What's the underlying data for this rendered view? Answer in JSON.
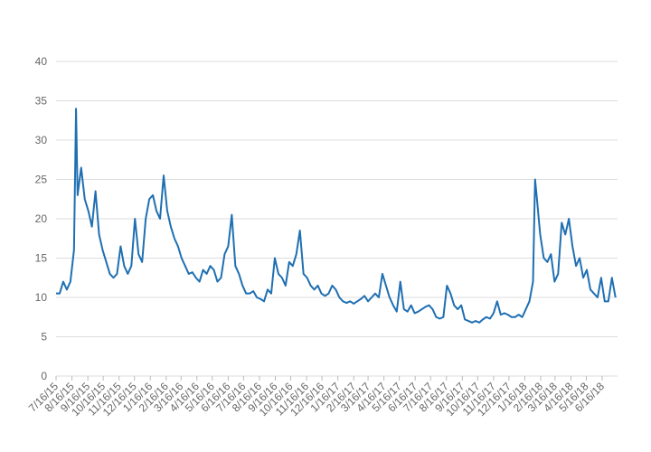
{
  "chart_data": {
    "type": "line",
    "color": "#1f6fb2",
    "x": [
      "7/16/15",
      "7/23/15",
      "7/30/15",
      "8/6/15",
      "8/13/15",
      "8/20/15",
      "8/24/15",
      "8/27/15",
      "9/3/15",
      "9/10/15",
      "9/17/15",
      "9/24/15",
      "10/1/15",
      "10/8/15",
      "10/15/15",
      "10/22/15",
      "10/29/15",
      "11/5/15",
      "11/12/15",
      "11/19/15",
      "11/26/15",
      "12/3/15",
      "12/10/15",
      "12/17/15",
      "12/24/15",
      "12/31/15",
      "1/7/16",
      "1/14/16",
      "1/21/16",
      "1/28/16",
      "2/4/16",
      "2/11/16",
      "2/18/16",
      "2/25/16",
      "3/3/16",
      "3/10/16",
      "3/17/16",
      "3/24/16",
      "3/31/16",
      "4/7/16",
      "4/14/16",
      "4/21/16",
      "4/28/16",
      "5/5/16",
      "5/12/16",
      "5/19/16",
      "5/26/16",
      "6/2/16",
      "6/9/16",
      "6/16/16",
      "6/23/16",
      "6/30/16",
      "7/7/16",
      "7/14/16",
      "7/21/16",
      "7/28/16",
      "8/4/16",
      "8/11/16",
      "8/18/16",
      "8/25/16",
      "9/1/16",
      "9/8/16",
      "9/15/16",
      "9/22/16",
      "9/29/16",
      "10/6/16",
      "10/13/16",
      "10/20/16",
      "10/27/16",
      "11/3/16",
      "11/10/16",
      "11/17/16",
      "11/24/16",
      "12/1/16",
      "12/8/16",
      "12/15/16",
      "12/22/16",
      "12/29/16",
      "1/5/17",
      "1/12/17",
      "1/19/17",
      "1/26/17",
      "2/2/17",
      "2/9/17",
      "2/16/17",
      "2/23/17",
      "3/2/17",
      "3/9/17",
      "3/16/17",
      "3/23/17",
      "3/30/17",
      "4/6/17",
      "4/13/17",
      "4/20/17",
      "4/27/17",
      "5/4/17",
      "5/11/17",
      "5/18/17",
      "5/25/17",
      "6/1/17",
      "6/8/17",
      "6/15/17",
      "6/22/17",
      "6/29/17",
      "7/6/17",
      "7/13/17",
      "7/20/17",
      "7/27/17",
      "8/3/17",
      "8/10/17",
      "8/17/17",
      "8/24/17",
      "8/31/17",
      "9/7/17",
      "9/14/17",
      "9/21/17",
      "9/28/17",
      "10/5/17",
      "10/12/17",
      "10/19/17",
      "10/26/17",
      "11/2/17",
      "11/9/17",
      "11/16/17",
      "11/23/17",
      "11/30/17",
      "12/7/17",
      "12/14/17",
      "12/21/17",
      "12/28/17",
      "1/4/18",
      "1/11/18",
      "1/18/18",
      "1/25/18",
      "2/1/18",
      "2/5/18",
      "2/8/18",
      "2/15/18",
      "2/22/18",
      "3/1/18",
      "3/8/18",
      "3/15/18",
      "3/22/18",
      "3/29/18",
      "4/5/18",
      "4/12/18",
      "4/19/18",
      "4/26/18",
      "5/3/18",
      "5/10/18",
      "5/17/18",
      "5/24/18",
      "5/31/18",
      "6/7/18",
      "6/14/18",
      "6/21/18",
      "6/28/18",
      "7/5/18",
      "7/12/18"
    ],
    "values": [
      10.5,
      10.5,
      12,
      11,
      12,
      16,
      34,
      23,
      26.5,
      22.5,
      21,
      19,
      23.5,
      18,
      16,
      14.5,
      13,
      12.5,
      13,
      16.5,
      14,
      13,
      14,
      20,
      15.5,
      14.5,
      20,
      22.5,
      23,
      21,
      20,
      25.5,
      21,
      19,
      17.5,
      16.5,
      15,
      14,
      13,
      13.2,
      12.5,
      12,
      13.5,
      13,
      14,
      13.5,
      12,
      12.5,
      15.5,
      16.5,
      20.5,
      14,
      13,
      11.5,
      10.5,
      10.5,
      10.8,
      10,
      9.8,
      9.5,
      11,
      10.5,
      15,
      13,
      12.5,
      11.5,
      14.5,
      14,
      15.5,
      18.5,
      13,
      12.5,
      11.5,
      11,
      11.5,
      10.5,
      10.2,
      10.5,
      11.5,
      11,
      10,
      9.5,
      9.3,
      9.5,
      9.2,
      9.5,
      9.8,
      10.2,
      9.5,
      10,
      10.5,
      10,
      13,
      11.5,
      10,
      9,
      8.2,
      12,
      8.5,
      8.2,
      9,
      8,
      8.2,
      8.5,
      8.8,
      9,
      8.5,
      7.5,
      7.3,
      7.5,
      11.5,
      10.5,
      9,
      8.5,
      9,
      7.2,
      7,
      6.8,
      7,
      6.8,
      7.2,
      7.5,
      7.3,
      8,
      9.5,
      7.8,
      8,
      7.8,
      7.5,
      7.5,
      7.8,
      7.5,
      8.5,
      9.5,
      12,
      25,
      23,
      18,
      15,
      14.5,
      15.5,
      12,
      13,
      19.5,
      18,
      20,
      16.5,
      14,
      15,
      12.5,
      13.5,
      11,
      10.5,
      10,
      12.5,
      9.5,
      9.5,
      12.5,
      10
    ],
    "xlim": [
      "7/16/15",
      "7/16/18"
    ],
    "xticks": [
      "7/16/15",
      "8/16/15",
      "9/16/15",
      "10/16/15",
      "11/16/15",
      "12/16/15",
      "1/16/16",
      "2/16/16",
      "3/16/16",
      "4/16/16",
      "5/16/16",
      "6/16/16",
      "7/16/16",
      "8/16/16",
      "9/16/16",
      "10/16/16",
      "11/16/16",
      "12/16/16",
      "1/16/17",
      "2/16/17",
      "3/16/17",
      "4/16/17",
      "5/16/17",
      "6/16/17",
      "7/16/17",
      "8/16/17",
      "9/16/17",
      "10/16/17",
      "11/16/17",
      "12/16/17",
      "1/16/18",
      "2/16/18",
      "3/16/18",
      "4/16/18",
      "5/16/18",
      "6/16/18"
    ],
    "ylim": [
      0,
      40
    ],
    "yticks": [
      0,
      5,
      10,
      15,
      20,
      25,
      30,
      35,
      40
    ],
    "grid": true
  }
}
